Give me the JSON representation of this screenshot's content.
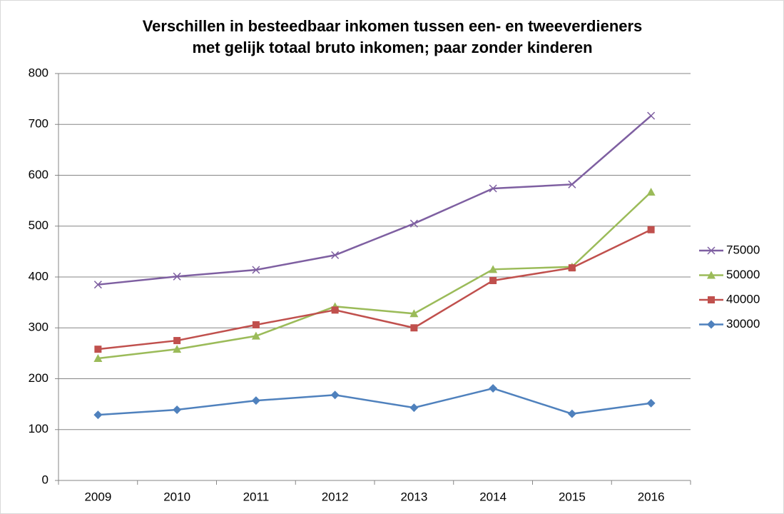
{
  "chart_data": {
    "type": "line",
    "title": [
      "Verschillen in besteedbaar inkomen tussen een- en tweeverdieners",
      "met gelijk totaal bruto inkomen; paar zonder kinderen"
    ],
    "categories": [
      "2009",
      "2010",
      "2011",
      "2012",
      "2013",
      "2014",
      "2015",
      "2016"
    ],
    "series": [
      {
        "name": "75000",
        "color": "#7e5fa1",
        "marker": "x",
        "values": [
          385,
          401,
          414,
          443,
          505,
          574,
          582,
          717
        ]
      },
      {
        "name": "50000",
        "color": "#9bbb59",
        "marker": "triangle",
        "values": [
          240,
          258,
          284,
          342,
          328,
          415,
          420,
          567
        ]
      },
      {
        "name": "40000",
        "color": "#c0504d",
        "marker": "square",
        "values": [
          258,
          275,
          306,
          335,
          300,
          393,
          418,
          493
        ]
      },
      {
        "name": "30000",
        "color": "#4f81bd",
        "marker": "diamond",
        "values": [
          129,
          139,
          157,
          168,
          143,
          181,
          131,
          152
        ]
      }
    ],
    "ylim": [
      0,
      800
    ],
    "yticks": [
      0,
      100,
      200,
      300,
      400,
      500,
      600,
      700,
      800
    ],
    "grid": true,
    "legend": "right"
  }
}
